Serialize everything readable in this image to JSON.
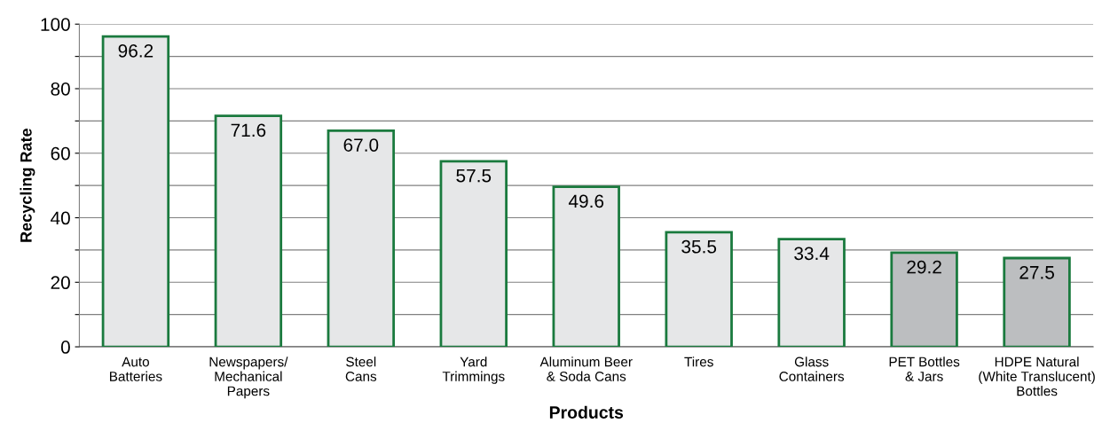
{
  "chart_data": {
    "type": "bar",
    "xlabel": "Products",
    "ylabel": "Recycling Rate",
    "categories": [
      "Auto\nBatteries",
      "Newspapers/\nMechanical\nPapers",
      "Steel\nCans",
      "Yard\nTrimmings",
      "Aluminum Beer\n& Soda Cans",
      "Tires",
      "Glass\nContainers",
      "PET Bottles\n& Jars",
      "HDPE Natural\n(White Translucent)\nBottles"
    ],
    "values": [
      96.2,
      71.6,
      67.0,
      57.5,
      49.6,
      35.5,
      33.4,
      29.2,
      27.5
    ],
    "value_labels": [
      "96.2",
      "71.6",
      "67.0",
      "57.5",
      "49.6",
      "35.5",
      "33.4",
      "29.2",
      "27.5"
    ],
    "colors": [
      "#e6e7e8",
      "#e6e7e8",
      "#e6e7e8",
      "#e6e7e8",
      "#e6e7e8",
      "#e6e7e8",
      "#e6e7e8",
      "#bcbec0",
      "#bcbec0"
    ],
    "ylim": [
      0,
      100
    ],
    "yticks": [
      0,
      {
        "value": 10,
        "label": null
      },
      20,
      {
        "value": 30,
        "label": null
      },
      40,
      {
        "value": 50,
        "label": null
      },
      60,
      {
        "value": 70,
        "label": null
      },
      80,
      {
        "value": 90,
        "label": null
      },
      100
    ],
    "grid": "y"
  }
}
